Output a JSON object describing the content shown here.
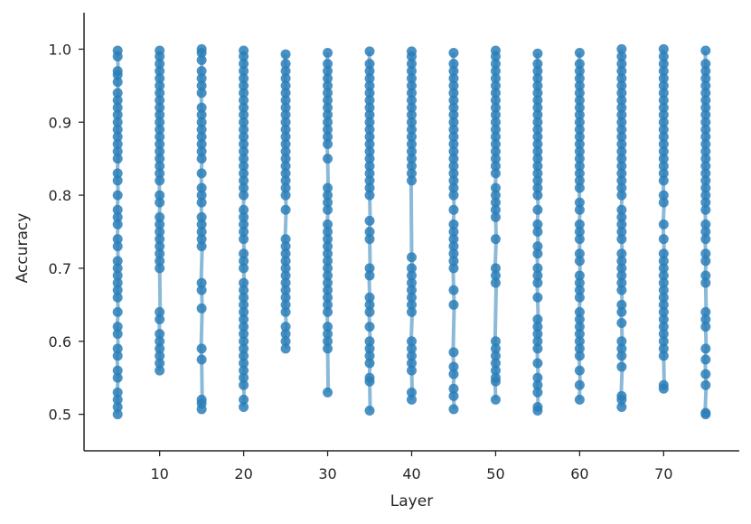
{
  "chart_data": {
    "type": "scatter",
    "title": "",
    "xlabel": "Layer",
    "ylabel": "Accuracy",
    "xlim": [
      1,
      79
    ],
    "ylim": [
      0.45,
      1.05
    ],
    "grid": false,
    "legend": "none",
    "color": "#2c7fb8",
    "x_ticks": [
      10,
      20,
      30,
      40,
      50,
      60,
      70
    ],
    "x_tick_labels": [
      "10",
      "20",
      "30",
      "40",
      "50",
      "60",
      "70"
    ],
    "y_ticks": [
      0.5,
      0.6,
      0.7,
      0.8,
      0.9,
      1.0
    ],
    "y_tick_labels": [
      "0.5",
      "0.6",
      "0.7",
      "0.8",
      "0.9",
      "1.0"
    ],
    "layers": [
      5,
      10,
      15,
      20,
      25,
      30,
      35,
      40,
      45,
      50,
      55,
      60,
      65,
      70,
      75
    ],
    "series": [
      {
        "x": 5,
        "values": [
          0.998,
          0.99,
          0.97,
          0.965,
          0.955,
          0.94,
          0.93,
          0.92,
          0.91,
          0.9,
          0.89,
          0.88,
          0.87,
          0.86,
          0.85,
          0.83,
          0.82,
          0.8,
          0.78,
          0.77,
          0.76,
          0.74,
          0.73,
          0.71,
          0.7,
          0.69,
          0.68,
          0.67,
          0.66,
          0.64,
          0.62,
          0.61,
          0.59,
          0.58,
          0.56,
          0.55,
          0.53,
          0.52,
          0.51,
          0.5
        ]
      },
      {
        "x": 10,
        "values": [
          0.998,
          0.99,
          0.98,
          0.97,
          0.96,
          0.95,
          0.94,
          0.93,
          0.92,
          0.91,
          0.9,
          0.89,
          0.88,
          0.87,
          0.86,
          0.85,
          0.84,
          0.83,
          0.82,
          0.8,
          0.79,
          0.77,
          0.76,
          0.75,
          0.74,
          0.73,
          0.72,
          0.71,
          0.7,
          0.64,
          0.63,
          0.61,
          0.6,
          0.59,
          0.58,
          0.57,
          0.56
        ]
      },
      {
        "x": 15,
        "values": [
          1.0,
          0.995,
          0.985,
          0.97,
          0.96,
          0.95,
          0.94,
          0.92,
          0.91,
          0.9,
          0.89,
          0.88,
          0.87,
          0.86,
          0.85,
          0.83,
          0.81,
          0.8,
          0.79,
          0.77,
          0.76,
          0.75,
          0.74,
          0.73,
          0.68,
          0.67,
          0.645,
          0.59,
          0.575,
          0.52,
          0.515,
          0.507
        ]
      },
      {
        "x": 20,
        "values": [
          0.998,
          0.99,
          0.98,
          0.97,
          0.96,
          0.95,
          0.94,
          0.93,
          0.92,
          0.91,
          0.9,
          0.89,
          0.88,
          0.87,
          0.86,
          0.85,
          0.84,
          0.83,
          0.82,
          0.81,
          0.8,
          0.78,
          0.77,
          0.76,
          0.75,
          0.74,
          0.72,
          0.71,
          0.7,
          0.68,
          0.67,
          0.66,
          0.65,
          0.64,
          0.63,
          0.62,
          0.61,
          0.6,
          0.59,
          0.58,
          0.57,
          0.56,
          0.55,
          0.54,
          0.52,
          0.51
        ]
      },
      {
        "x": 25,
        "values": [
          0.993,
          0.98,
          0.97,
          0.96,
          0.95,
          0.94,
          0.93,
          0.92,
          0.91,
          0.9,
          0.89,
          0.88,
          0.87,
          0.86,
          0.85,
          0.84,
          0.83,
          0.82,
          0.81,
          0.8,
          0.78,
          0.74,
          0.73,
          0.72,
          0.71,
          0.7,
          0.69,
          0.68,
          0.67,
          0.66,
          0.65,
          0.64,
          0.62,
          0.61,
          0.6,
          0.59
        ]
      },
      {
        "x": 30,
        "values": [
          0.995,
          0.98,
          0.97,
          0.96,
          0.95,
          0.94,
          0.93,
          0.92,
          0.91,
          0.9,
          0.89,
          0.88,
          0.87,
          0.85,
          0.81,
          0.8,
          0.79,
          0.78,
          0.76,
          0.75,
          0.74,
          0.73,
          0.72,
          0.71,
          0.7,
          0.69,
          0.68,
          0.67,
          0.66,
          0.65,
          0.64,
          0.62,
          0.61,
          0.6,
          0.59,
          0.53
        ]
      },
      {
        "x": 35,
        "values": [
          0.997,
          0.98,
          0.97,
          0.96,
          0.95,
          0.94,
          0.93,
          0.92,
          0.91,
          0.9,
          0.89,
          0.88,
          0.87,
          0.86,
          0.85,
          0.84,
          0.83,
          0.82,
          0.81,
          0.8,
          0.765,
          0.75,
          0.74,
          0.7,
          0.69,
          0.66,
          0.65,
          0.64,
          0.62,
          0.6,
          0.59,
          0.58,
          0.57,
          0.55,
          0.545,
          0.505
        ]
      },
      {
        "x": 40,
        "values": [
          0.997,
          0.99,
          0.98,
          0.97,
          0.96,
          0.95,
          0.94,
          0.93,
          0.92,
          0.91,
          0.9,
          0.89,
          0.88,
          0.87,
          0.86,
          0.85,
          0.84,
          0.83,
          0.82,
          0.715,
          0.7,
          0.69,
          0.68,
          0.67,
          0.66,
          0.65,
          0.64,
          0.6,
          0.59,
          0.58,
          0.57,
          0.56,
          0.53,
          0.52
        ]
      },
      {
        "x": 45,
        "values": [
          0.995,
          0.98,
          0.97,
          0.96,
          0.95,
          0.94,
          0.93,
          0.92,
          0.91,
          0.9,
          0.89,
          0.88,
          0.87,
          0.86,
          0.85,
          0.84,
          0.83,
          0.82,
          0.81,
          0.8,
          0.78,
          0.76,
          0.75,
          0.74,
          0.73,
          0.72,
          0.71,
          0.7,
          0.67,
          0.65,
          0.585,
          0.565,
          0.555,
          0.535,
          0.525,
          0.507
        ]
      },
      {
        "x": 50,
        "values": [
          0.998,
          0.99,
          0.98,
          0.97,
          0.96,
          0.95,
          0.94,
          0.93,
          0.92,
          0.91,
          0.9,
          0.89,
          0.88,
          0.87,
          0.86,
          0.85,
          0.84,
          0.83,
          0.81,
          0.8,
          0.79,
          0.78,
          0.77,
          0.74,
          0.7,
          0.69,
          0.68,
          0.6,
          0.59,
          0.58,
          0.57,
          0.56,
          0.55,
          0.545,
          0.52
        ]
      },
      {
        "x": 55,
        "values": [
          0.994,
          0.98,
          0.97,
          0.96,
          0.95,
          0.94,
          0.93,
          0.92,
          0.91,
          0.9,
          0.89,
          0.88,
          0.87,
          0.86,
          0.85,
          0.84,
          0.83,
          0.82,
          0.81,
          0.8,
          0.78,
          0.76,
          0.75,
          0.73,
          0.72,
          0.7,
          0.69,
          0.68,
          0.66,
          0.63,
          0.62,
          0.61,
          0.6,
          0.59,
          0.57,
          0.55,
          0.54,
          0.53,
          0.51,
          0.505
        ]
      },
      {
        "x": 60,
        "values": [
          0.995,
          0.98,
          0.97,
          0.96,
          0.95,
          0.94,
          0.93,
          0.92,
          0.91,
          0.9,
          0.89,
          0.88,
          0.87,
          0.86,
          0.85,
          0.84,
          0.83,
          0.82,
          0.81,
          0.79,
          0.78,
          0.76,
          0.75,
          0.74,
          0.72,
          0.71,
          0.69,
          0.68,
          0.67,
          0.66,
          0.64,
          0.63,
          0.62,
          0.61,
          0.6,
          0.59,
          0.58,
          0.56,
          0.54,
          0.52
        ]
      },
      {
        "x": 65,
        "values": [
          1.0,
          0.99,
          0.98,
          0.97,
          0.96,
          0.95,
          0.94,
          0.93,
          0.92,
          0.91,
          0.9,
          0.89,
          0.88,
          0.87,
          0.86,
          0.85,
          0.84,
          0.83,
          0.82,
          0.81,
          0.8,
          0.78,
          0.77,
          0.76,
          0.75,
          0.74,
          0.72,
          0.71,
          0.7,
          0.69,
          0.68,
          0.67,
          0.65,
          0.64,
          0.625,
          0.6,
          0.59,
          0.58,
          0.565,
          0.525,
          0.52,
          0.51
        ]
      },
      {
        "x": 70,
        "values": [
          1.0,
          0.99,
          0.98,
          0.97,
          0.96,
          0.95,
          0.94,
          0.93,
          0.92,
          0.91,
          0.9,
          0.89,
          0.88,
          0.87,
          0.86,
          0.85,
          0.84,
          0.83,
          0.82,
          0.8,
          0.79,
          0.76,
          0.74,
          0.72,
          0.71,
          0.7,
          0.69,
          0.68,
          0.67,
          0.66,
          0.65,
          0.64,
          0.63,
          0.62,
          0.61,
          0.6,
          0.59,
          0.58,
          0.54,
          0.535
        ]
      },
      {
        "x": 75,
        "values": [
          0.998,
          0.98,
          0.97,
          0.96,
          0.95,
          0.94,
          0.93,
          0.92,
          0.91,
          0.9,
          0.89,
          0.88,
          0.87,
          0.86,
          0.85,
          0.84,
          0.83,
          0.82,
          0.81,
          0.8,
          0.79,
          0.78,
          0.76,
          0.75,
          0.74,
          0.72,
          0.71,
          0.69,
          0.68,
          0.64,
          0.63,
          0.62,
          0.59,
          0.575,
          0.555,
          0.54,
          0.502,
          0.5
        ]
      }
    ]
  }
}
